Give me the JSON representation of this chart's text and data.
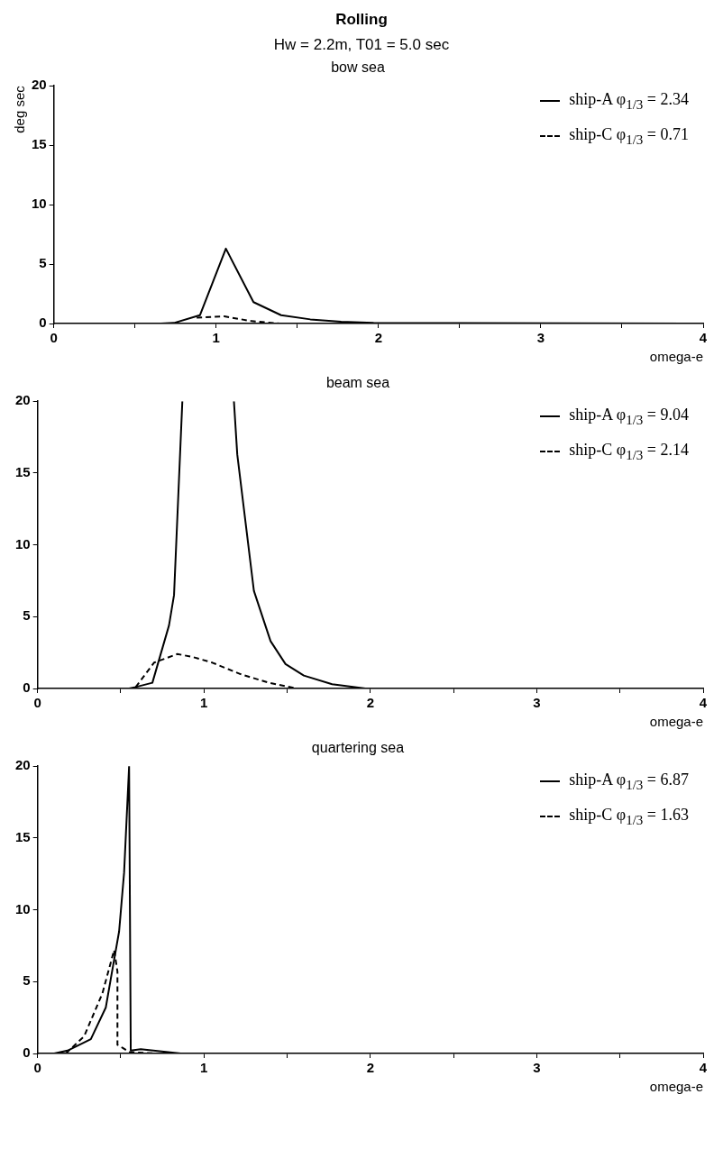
{
  "chart_data": [
    {
      "type": "other",
      "title": "Rolling",
      "subtitle": "Hw = 2.2m, T01 = 5.0 sec"
    },
    {
      "type": "line",
      "title": "bow sea",
      "xlabel": "omega-e",
      "ylabel": "deg sec",
      "xlim": [
        0,
        4
      ],
      "ylim": [
        0,
        20
      ],
      "xticks": [
        0,
        {
          "value": 0.5,
          "label": null
        },
        1,
        {
          "value": 1.5,
          "label": null
        },
        2,
        {
          "value": 2.5,
          "label": null
        },
        3,
        {
          "value": 3.5,
          "label": null
        },
        4
      ],
      "yticks": [
        0,
        5,
        10,
        15,
        20
      ],
      "grid": false,
      "legend": "top right",
      "marker": "none",
      "series": [
        {
          "name": "ship-A φ$_{1/3}$ = 2.34",
          "color": "#000000",
          "line_style": "solid",
          "x": [
            0,
            0.66,
            0.74,
            0.9,
            1.06,
            1.23,
            1.4,
            1.58,
            1.77,
            1.97,
            4
          ],
          "values": [
            0,
            0,
            0.05,
            0.7,
            6.3,
            1.8,
            0.7,
            0.35,
            0.15,
            0.05,
            0
          ]
        },
        {
          "name": "ship-C φ$_{1/3}$ = 0.71",
          "color": "#000000",
          "line_style": "dashed",
          "x": [
            0.88,
            1.05,
            1.22,
            1.39
          ],
          "values": [
            0.5,
            0.6,
            0.2,
            0
          ]
        }
      ]
    },
    {
      "type": "line",
      "title": "beam sea",
      "xlabel": "omega-e",
      "xlim": [
        0,
        4
      ],
      "ylim": [
        0,
        20
      ],
      "xticks": [
        0,
        {
          "value": 0.5,
          "label": null
        },
        1,
        {
          "value": 1.5,
          "label": null
        },
        2,
        {
          "value": 2.5,
          "label": null
        },
        3,
        {
          "value": 3.5,
          "label": null
        },
        4
      ],
      "yticks": [
        0,
        5,
        10,
        15,
        20
      ],
      "grid": false,
      "legend": "top right",
      "marker": "none",
      "series": [
        {
          "name": "ship-A φ$_{1/3}$ = 9.04",
          "color": "#000000",
          "line_style": "solid",
          "x": [
            0,
            0.55,
            0.59,
            0.69,
            0.79,
            0.82,
            0.87,
            1.0,
            1.18,
            1.2,
            1.3,
            1.4,
            1.49,
            1.6,
            1.77,
            1.97,
            4
          ],
          "values": [
            0,
            0,
            0.1,
            0.4,
            4.4,
            6.5,
            20,
            null,
            20,
            16.3,
            6.8,
            3.3,
            1.7,
            0.9,
            0.3,
            0,
            0
          ]
        },
        {
          "name": "ship-C φ$_{1/3}$ = 2.14",
          "color": "#000000",
          "line_style": "dashed",
          "x": [
            0.59,
            0.7,
            0.84,
            0.93,
            1.05,
            1.22,
            1.39,
            1.56
          ],
          "values": [
            0.1,
            1.8,
            2.4,
            2.2,
            1.8,
            1.0,
            0.4,
            0
          ]
        }
      ]
    },
    {
      "type": "line",
      "title": "quartering sea",
      "xlabel": "omega-e",
      "xlim": [
        0,
        4
      ],
      "ylim": [
        0,
        20
      ],
      "xticks": [
        0,
        {
          "value": 0.5,
          "label": null
        },
        1,
        {
          "value": 1.5,
          "label": null
        },
        2,
        {
          "value": 2.5,
          "label": null
        },
        3,
        {
          "value": 3.5,
          "label": null
        },
        4
      ],
      "yticks": [
        0,
        5,
        10,
        15,
        20
      ],
      "grid": false,
      "legend": "top right",
      "marker": "none",
      "series": [
        {
          "name": "ship-A φ$_{1/3}$ = 6.87",
          "color": "#000000",
          "line_style": "solid",
          "x": [
            0,
            0.1,
            0.18,
            0.32,
            0.41,
            0.44,
            0.49,
            0.52,
            0.55,
            0.56,
            0.62,
            0.86,
            4
          ],
          "values": [
            0,
            0,
            0.2,
            1.0,
            3.2,
            5.2,
            8.5,
            12.6,
            20,
            0.2,
            0.3,
            0,
            0
          ]
        },
        {
          "name": "ship-C φ$_{1/3}$ = 1.63",
          "color": "#000000",
          "line_style": "dashed",
          "x": [
            0.17,
            0.28,
            0.39,
            0.46,
            0.48,
            0.48,
            0.51,
            0.55,
            0.72
          ],
          "values": [
            0,
            1.2,
            4.2,
            7.2,
            5.7,
            0.6,
            0.4,
            0.1,
            0
          ]
        }
      ]
    }
  ]
}
